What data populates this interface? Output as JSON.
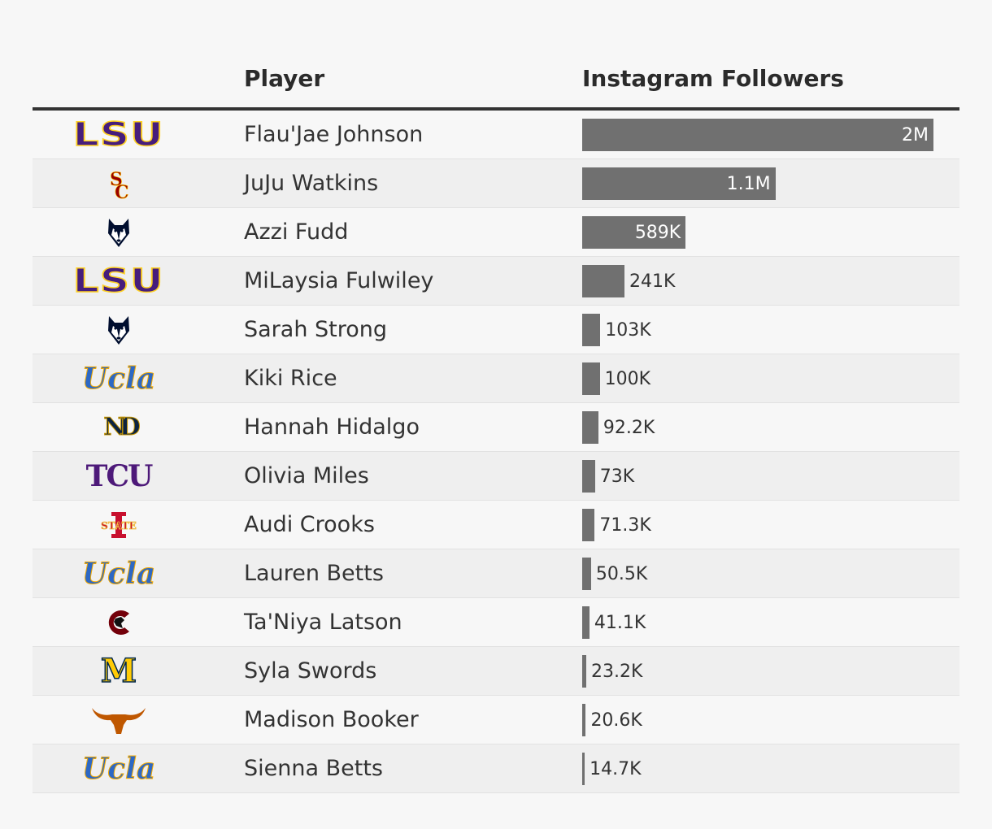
{
  "table": {
    "header_player": "Player",
    "header_followers": "Instagram Followers"
  },
  "colors": {
    "bar": "#707070",
    "lsu_purple": "#461d7c",
    "usc_cardinal": "#990000",
    "uconn_navy": "#000e2f",
    "ucla_blue": "#2d68c4",
    "nd_navy": "#0c2340",
    "tcu_purple": "#4d1979",
    "isu_cardinal": "#c8102e",
    "sc_garnet": "#73000a",
    "mich_maize": "#ffcb05",
    "texas_orange": "#bf5700"
  },
  "chart_data": {
    "type": "bar",
    "orientation": "horizontal",
    "categories": [
      "Flau'Jae Johnson",
      "JuJu Watkins",
      "Azzi Fudd",
      "MiLaysia Fulwiley",
      "Sarah Strong",
      "Kiki Rice",
      "Hannah Hidalgo",
      "Olivia Miles",
      "Audi Crooks",
      "Lauren Betts",
      "Ta'Niya Latson",
      "Syla Swords",
      "Madison Booker",
      "Sienna Betts"
    ],
    "values": [
      2000000,
      1100000,
      589000,
      241000,
      103000,
      100000,
      92200,
      73000,
      71300,
      50500,
      41100,
      23200,
      20600,
      14700
    ],
    "value_labels": [
      "2M",
      "1.1M",
      "589K",
      "241K",
      "103K",
      "100K",
      "92.2K",
      "73K",
      "71.3K",
      "50.5K",
      "41.1K",
      "23.2K",
      "20.6K",
      "14.7K"
    ],
    "teams": [
      "lsu",
      "usc",
      "uconn",
      "lsu",
      "uconn",
      "ucla",
      "notre-dame",
      "tcu",
      "iowa-state",
      "ucla",
      "south-carolina",
      "michigan",
      "texas",
      "ucla"
    ],
    "xlim": [
      0,
      2000000
    ],
    "grid": false
  },
  "logos": {
    "lsu": "LSU",
    "ucla": "Ucla",
    "tcu": "TCU",
    "nd": "ND",
    "m": "M",
    "usc": "SC",
    "isu": "STATE"
  }
}
